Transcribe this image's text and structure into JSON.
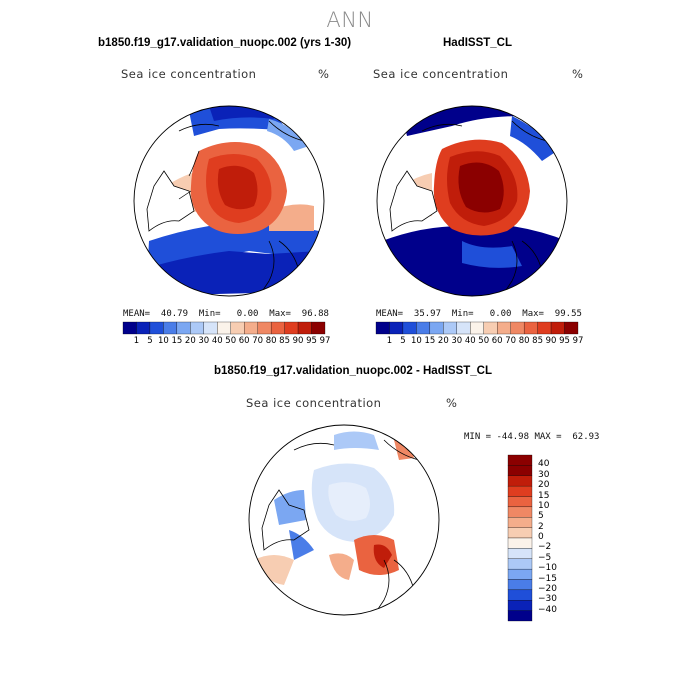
{
  "season": "ANN",
  "panels": {
    "left": {
      "title": "b1850.f19_g17.validation_nuopc.002 (yrs 1-30)",
      "field": "Sea ice concentration",
      "units": "%",
      "stats": "MEAN=  40.79  Min=   0.00  Max=  96.88",
      "colorbar_labels": [
        "1",
        "5",
        "10",
        "15",
        "20",
        "30",
        "40",
        "50",
        "60",
        "70",
        "80",
        "85",
        "90",
        "95",
        "97"
      ]
    },
    "right": {
      "title": "HadISST_CL",
      "field": "Sea ice concentration",
      "units": "%",
      "stats": "MEAN=  35.97  Min=   0.00  Max=  99.55",
      "colorbar_labels": [
        "1",
        "5",
        "10",
        "15",
        "20",
        "30",
        "40",
        "50",
        "60",
        "70",
        "80",
        "85",
        "90",
        "95",
        "97"
      ]
    },
    "diff": {
      "title": "b1850.f19_g17.validation_nuopc.002 - HadISST_CL",
      "field": "Sea ice concentration",
      "units": "%",
      "stats": "MIN = -44.98 MAX =  62.93",
      "colorbar_labels": [
        "40",
        "30",
        "20",
        "15",
        "10",
        "5",
        "2",
        "0",
        "−2",
        "−5",
        "−10",
        "−15",
        "−20",
        "−30",
        "−40"
      ]
    }
  },
  "colors": {
    "abs_scale": [
      "#00008b",
      "#0a22b8",
      "#1f4fd9",
      "#4a7de8",
      "#7ba7f2",
      "#acc9f7",
      "#d6e4f9",
      "#fbf3ea",
      "#f7cdb2",
      "#f4ad8b",
      "#ef8864",
      "#ea6340",
      "#df3d1f",
      "#c01d0a",
      "#8b0000"
    ],
    "diff_scale": [
      "#8b0000",
      "#c01d0a",
      "#df3d1f",
      "#ea6340",
      "#ef8864",
      "#f4ad8b",
      "#f7cdb2",
      "#fbf3ea",
      "#d6e4f9",
      "#acc9f7",
      "#7ba7f2",
      "#4a7de8",
      "#1f4fd9",
      "#0a22b8",
      "#00008b"
    ]
  }
}
